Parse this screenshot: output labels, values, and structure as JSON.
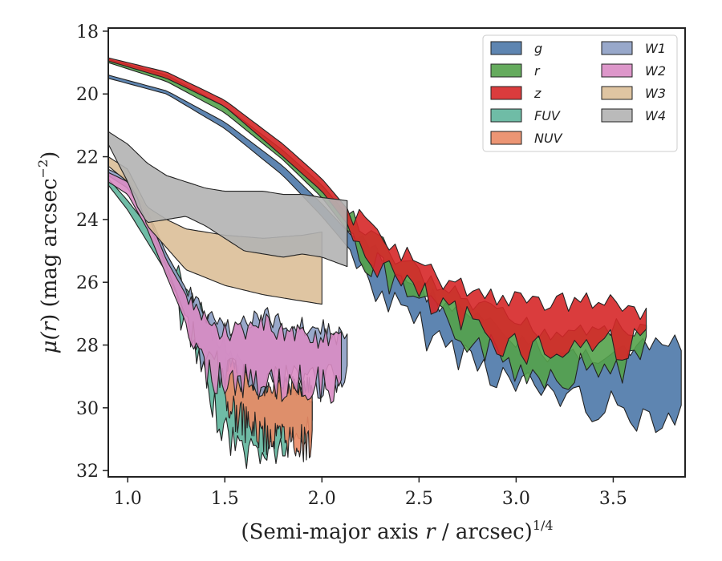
{
  "chart_data": {
    "type": "area",
    "xlabel_main": "(Semi-major axis ",
    "xlabel_var": "r",
    "xlabel_rest": " / arcsec)",
    "xlabel_sup": "1/4",
    "ylabel_prefix": "μ(",
    "ylabel_var": "r",
    "ylabel_mid": ") (mag arcsec",
    "ylabel_sup": "−2",
    "ylabel_suffix": ")",
    "xlim": [
      0.9,
      3.87
    ],
    "ylim": [
      32.2,
      17.9
    ],
    "x_ticks": [
      1.0,
      1.5,
      2.0,
      2.5,
      3.0,
      3.5
    ],
    "x_tick_labels": [
      "1.0",
      "1.5",
      "2.0",
      "2.5",
      "3.0",
      "3.5"
    ],
    "y_ticks": [
      18,
      20,
      22,
      24,
      26,
      28,
      30,
      32
    ],
    "y_tick_labels": [
      "18",
      "20",
      "22",
      "24",
      "26",
      "28",
      "30",
      "32"
    ],
    "grid": false,
    "legend_position": "top-right",
    "legend_columns": 2,
    "series": [
      {
        "name": "g",
        "color": "#4c78a8",
        "x_start": 0.9,
        "x_end": 3.85,
        "jagged_from": 2.15,
        "upper": [
          [
            0.9,
            19.4
          ],
          [
            1.2,
            19.9
          ],
          [
            1.5,
            20.9
          ],
          [
            1.8,
            22.3
          ],
          [
            2.0,
            23.5
          ],
          [
            2.15,
            24.5
          ],
          [
            2.4,
            25.7
          ],
          [
            2.6,
            26.6
          ],
          [
            2.8,
            27.2
          ],
          [
            3.0,
            27.9
          ],
          [
            3.2,
            28.3
          ],
          [
            3.4,
            28.3
          ],
          [
            3.6,
            28.2
          ],
          [
            3.85,
            27.9
          ]
        ],
        "lower": [
          [
            0.9,
            19.5
          ],
          [
            1.2,
            20.0
          ],
          [
            1.5,
            21.1
          ],
          [
            1.8,
            22.6
          ],
          [
            2.0,
            23.9
          ],
          [
            2.15,
            25.0
          ],
          [
            2.4,
            26.7
          ],
          [
            2.6,
            27.6
          ],
          [
            2.8,
            28.2
          ],
          [
            3.0,
            29.0
          ],
          [
            3.2,
            29.2
          ],
          [
            3.4,
            29.6
          ],
          [
            3.6,
            29.9
          ],
          [
            3.85,
            29.9
          ]
        ]
      },
      {
        "name": "r",
        "color": "#54a24b",
        "x_start": 0.9,
        "x_end": 3.67,
        "jagged_from": 2.15,
        "upper": [
          [
            0.9,
            18.9
          ],
          [
            1.2,
            19.4
          ],
          [
            1.5,
            20.4
          ],
          [
            1.8,
            21.8
          ],
          [
            2.0,
            22.9
          ],
          [
            2.15,
            24.0
          ],
          [
            2.4,
            25.3
          ],
          [
            2.6,
            26.2
          ],
          [
            2.8,
            26.8
          ],
          [
            3.0,
            27.3
          ],
          [
            3.2,
            27.6
          ],
          [
            3.4,
            27.3
          ],
          [
            3.6,
            27.6
          ],
          [
            3.67,
            27.5
          ]
        ],
        "lower": [
          [
            0.9,
            19.0
          ],
          [
            1.2,
            19.6
          ],
          [
            1.5,
            20.6
          ],
          [
            1.8,
            22.1
          ],
          [
            2.0,
            23.3
          ],
          [
            2.15,
            24.5
          ],
          [
            2.4,
            26.0
          ],
          [
            2.6,
            26.9
          ],
          [
            2.8,
            27.6
          ],
          [
            3.0,
            28.4
          ],
          [
            3.2,
            28.6
          ],
          [
            3.4,
            28.4
          ],
          [
            3.6,
            28.3
          ],
          [
            3.67,
            28.0
          ]
        ]
      },
      {
        "name": "z",
        "color": "#d62728",
        "x_start": 0.9,
        "x_end": 3.67,
        "jagged_from": 2.15,
        "upper": [
          [
            0.9,
            18.85
          ],
          [
            1.2,
            19.3
          ],
          [
            1.5,
            20.2
          ],
          [
            1.8,
            21.6
          ],
          [
            2.0,
            22.7
          ],
          [
            2.15,
            23.8
          ],
          [
            2.4,
            25.0
          ],
          [
            2.6,
            25.9
          ],
          [
            2.8,
            26.3
          ],
          [
            3.0,
            26.6
          ],
          [
            3.2,
            26.6
          ],
          [
            3.4,
            26.6
          ],
          [
            3.6,
            26.8
          ],
          [
            3.67,
            27.0
          ]
        ],
        "lower": [
          [
            0.9,
            18.95
          ],
          [
            1.2,
            19.5
          ],
          [
            1.5,
            20.4
          ],
          [
            1.8,
            22.0
          ],
          [
            2.0,
            23.1
          ],
          [
            2.15,
            24.3
          ],
          [
            2.4,
            25.7
          ],
          [
            2.6,
            26.6
          ],
          [
            2.8,
            27.2
          ],
          [
            3.0,
            27.7
          ],
          [
            3.2,
            27.9
          ],
          [
            3.4,
            27.6
          ],
          [
            3.6,
            27.7
          ],
          [
            3.67,
            27.5
          ]
        ]
      },
      {
        "name": "FUV",
        "color": "#5fb59c",
        "x_start": 0.9,
        "x_end": 1.95,
        "jagged_from": 1.25,
        "upper": [
          [
            0.9,
            22.7
          ],
          [
            1.0,
            23.4
          ],
          [
            1.1,
            24.2
          ],
          [
            1.2,
            25.1
          ],
          [
            1.3,
            26.2
          ],
          [
            1.4,
            27.2
          ],
          [
            1.5,
            28.1
          ],
          [
            1.6,
            28.9
          ],
          [
            1.7,
            29.4
          ],
          [
            1.8,
            29.4
          ],
          [
            1.95,
            29.5
          ]
        ],
        "lower": [
          [
            0.9,
            22.9
          ],
          [
            1.0,
            23.7
          ],
          [
            1.1,
            24.7
          ],
          [
            1.2,
            25.7
          ],
          [
            1.3,
            27.0
          ],
          [
            1.4,
            29.0
          ],
          [
            1.5,
            30.5
          ],
          [
            1.6,
            31.1
          ],
          [
            1.7,
            31.1
          ],
          [
            1.8,
            31.0
          ],
          [
            1.95,
            30.4
          ]
        ]
      },
      {
        "name": "NUV",
        "color": "#ea8a65",
        "x_start": 1.5,
        "x_end": 1.95,
        "jagged_from": 1.5,
        "upper": [
          [
            1.5,
            28.5
          ],
          [
            1.6,
            29.0
          ],
          [
            1.7,
            29.3
          ],
          [
            1.8,
            29.3
          ],
          [
            1.95,
            29.3
          ]
        ],
        "lower": [
          [
            1.5,
            29.5
          ],
          [
            1.6,
            30.2
          ],
          [
            1.7,
            30.6
          ],
          [
            1.8,
            30.7
          ],
          [
            1.95,
            30.9
          ]
        ]
      },
      {
        "name": "W1",
        "color": "#8d9fc4",
        "x_start": 0.9,
        "x_end": 2.13,
        "jagged_from": 1.3,
        "upper": [
          [
            0.9,
            22.4
          ],
          [
            1.0,
            22.7
          ],
          [
            1.1,
            23.7
          ],
          [
            1.2,
            25.1
          ],
          [
            1.3,
            26.2
          ],
          [
            1.4,
            27.1
          ],
          [
            1.5,
            27.4
          ],
          [
            1.6,
            27.3
          ],
          [
            1.7,
            27.1
          ],
          [
            1.8,
            27.3
          ],
          [
            1.9,
            27.4
          ],
          [
            2.0,
            27.5
          ],
          [
            2.13,
            27.8
          ]
        ],
        "lower": [
          [
            0.9,
            22.6
          ],
          [
            1.0,
            23.0
          ],
          [
            1.1,
            24.0
          ],
          [
            1.2,
            25.5
          ],
          [
            1.3,
            27.1
          ],
          [
            1.4,
            28.3
          ],
          [
            1.5,
            28.6
          ],
          [
            1.6,
            28.7
          ],
          [
            1.7,
            28.8
          ],
          [
            1.8,
            28.8
          ],
          [
            1.9,
            28.7
          ],
          [
            2.0,
            28.9
          ],
          [
            2.13,
            28.9
          ]
        ]
      },
      {
        "name": "W2",
        "color": "#d98cc4",
        "x_start": 0.9,
        "x_end": 2.1,
        "jagged_from": 1.3,
        "upper": [
          [
            0.9,
            22.5
          ],
          [
            1.0,
            22.8
          ],
          [
            1.1,
            23.8
          ],
          [
            1.2,
            25.3
          ],
          [
            1.3,
            26.4
          ],
          [
            1.4,
            27.3
          ],
          [
            1.5,
            27.6
          ],
          [
            1.6,
            27.5
          ],
          [
            1.7,
            27.3
          ],
          [
            1.8,
            27.6
          ],
          [
            1.9,
            27.6
          ],
          [
            2.0,
            27.8
          ],
          [
            2.1,
            27.9
          ]
        ],
        "lower": [
          [
            0.9,
            22.8
          ],
          [
            1.0,
            23.2
          ],
          [
            1.1,
            24.3
          ],
          [
            1.2,
            25.8
          ],
          [
            1.3,
            27.3
          ],
          [
            1.4,
            28.5
          ],
          [
            1.5,
            28.8
          ],
          [
            1.6,
            28.9
          ],
          [
            1.7,
            28.9
          ],
          [
            1.8,
            29.0
          ],
          [
            1.9,
            28.9
          ],
          [
            2.0,
            29.0
          ],
          [
            2.1,
            29.0
          ]
        ]
      },
      {
        "name": "W3",
        "color": "#dcbf98",
        "x_start": 0.9,
        "x_end": 2.0,
        "jagged_from": 9,
        "upper": [
          [
            0.9,
            22.0
          ],
          [
            1.0,
            22.4
          ],
          [
            1.05,
            23.0
          ],
          [
            1.1,
            23.6
          ],
          [
            1.2,
            24.0
          ],
          [
            1.3,
            24.3
          ],
          [
            1.5,
            24.5
          ],
          [
            1.7,
            24.6
          ],
          [
            1.9,
            24.5
          ],
          [
            2.0,
            24.4
          ]
        ],
        "lower": [
          [
            0.9,
            22.3
          ],
          [
            1.0,
            22.8
          ],
          [
            1.05,
            23.3
          ],
          [
            1.1,
            24.2
          ],
          [
            1.2,
            24.9
          ],
          [
            1.3,
            25.6
          ],
          [
            1.5,
            26.1
          ],
          [
            1.7,
            26.4
          ],
          [
            1.9,
            26.6
          ],
          [
            2.0,
            26.7
          ]
        ]
      },
      {
        "name": "W4",
        "color": "#b3b3b3",
        "x_start": 0.9,
        "x_end": 2.13,
        "jagged_from": 9,
        "upper": [
          [
            0.9,
            21.2
          ],
          [
            1.0,
            21.6
          ],
          [
            1.1,
            22.2
          ],
          [
            1.2,
            22.6
          ],
          [
            1.3,
            22.8
          ],
          [
            1.4,
            23.0
          ],
          [
            1.5,
            23.1
          ],
          [
            1.6,
            23.1
          ],
          [
            1.7,
            23.1
          ],
          [
            1.8,
            23.2
          ],
          [
            1.9,
            23.2
          ],
          [
            2.0,
            23.3
          ],
          [
            2.13,
            23.4
          ]
        ],
        "lower": [
          [
            0.9,
            21.6
          ],
          [
            1.0,
            22.8
          ],
          [
            1.05,
            23.6
          ],
          [
            1.1,
            24.1
          ],
          [
            1.2,
            24.0
          ],
          [
            1.3,
            23.9
          ],
          [
            1.4,
            24.2
          ],
          [
            1.5,
            24.6
          ],
          [
            1.6,
            25.0
          ],
          [
            1.7,
            25.1
          ],
          [
            1.8,
            25.2
          ],
          [
            1.9,
            25.1
          ],
          [
            2.0,
            25.2
          ],
          [
            2.13,
            25.5
          ]
        ]
      }
    ]
  }
}
